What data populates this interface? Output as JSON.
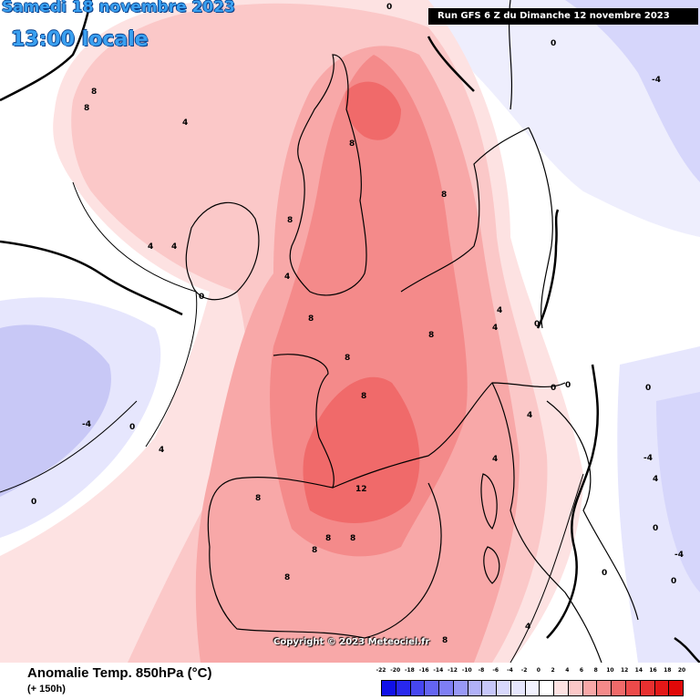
{
  "header": {
    "date": "Samedi 18 novembre 2023",
    "time": "13:00 locale",
    "run": "Run GFS 6 Z du Dimanche 12 novembre 2023"
  },
  "copyright": "Copyright © 2023 Meteociel.fr",
  "footer": {
    "variable": "Anomalie Temp. 850hPa (°C)",
    "lead": "(+ 150h)"
  },
  "legend": {
    "labels": [
      "-22",
      "-20",
      "-18",
      "-16",
      "-14",
      "-12",
      "-10",
      "-8",
      "-6",
      "-4",
      "-2",
      "0",
      "2",
      "4",
      "6",
      "8",
      "10",
      "12",
      "14",
      "16",
      "18",
      "20"
    ],
    "colors": [
      "#1010e8",
      "#2828ee",
      "#4646f0",
      "#6464f2",
      "#7e7ef4",
      "#9898f6",
      "#b0b0f8",
      "#c6c6fa",
      "#d8d8fc",
      "#e6e6fd",
      "#f2f2fe",
      "#ffffff",
      "#fde2e2",
      "#fbc8c8",
      "#f8a8a8",
      "#f48a8a",
      "#f06a6a",
      "#ec4a4a",
      "#e83030",
      "#e41818",
      "#e00808"
    ]
  },
  "contour_labels": [
    "0",
    "4",
    "8",
    "12",
    "-4"
  ]
}
